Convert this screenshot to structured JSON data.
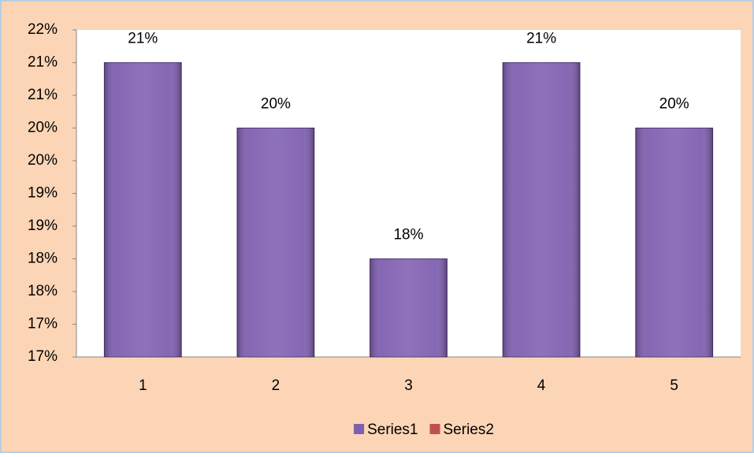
{
  "chart_data": {
    "type": "bar",
    "categories": [
      "1",
      "2",
      "3",
      "4",
      "5"
    ],
    "series": [
      {
        "name": "Series1",
        "color": "#7f5fb0",
        "values": [
          21,
          20,
          18,
          21,
          20
        ],
        "value_labels": [
          "21%",
          "20%",
          "18%",
          "21%",
          "20%"
        ]
      },
      {
        "name": "Series2",
        "color": "#c0504d",
        "values": [
          null,
          null,
          null,
          null,
          null
        ]
      }
    ],
    "ylim": [
      16.5,
      21.5
    ],
    "yticks": [
      {
        "value": 16.5,
        "label": "17%"
      },
      {
        "value": 17,
        "label": "17%"
      },
      {
        "value": 17.5,
        "label": "18%"
      },
      {
        "value": 18,
        "label": "18%"
      },
      {
        "value": 18.5,
        "label": "19%"
      },
      {
        "value": 19,
        "label": "19%"
      },
      {
        "value": 19.5,
        "label": "20%"
      },
      {
        "value": 20,
        "label": "20%"
      },
      {
        "value": 20.5,
        "label": "21%"
      },
      {
        "value": 21,
        "label": "21%"
      },
      {
        "value": 21.5,
        "label": "22%"
      }
    ],
    "grid": false,
    "legend": "bottom"
  }
}
